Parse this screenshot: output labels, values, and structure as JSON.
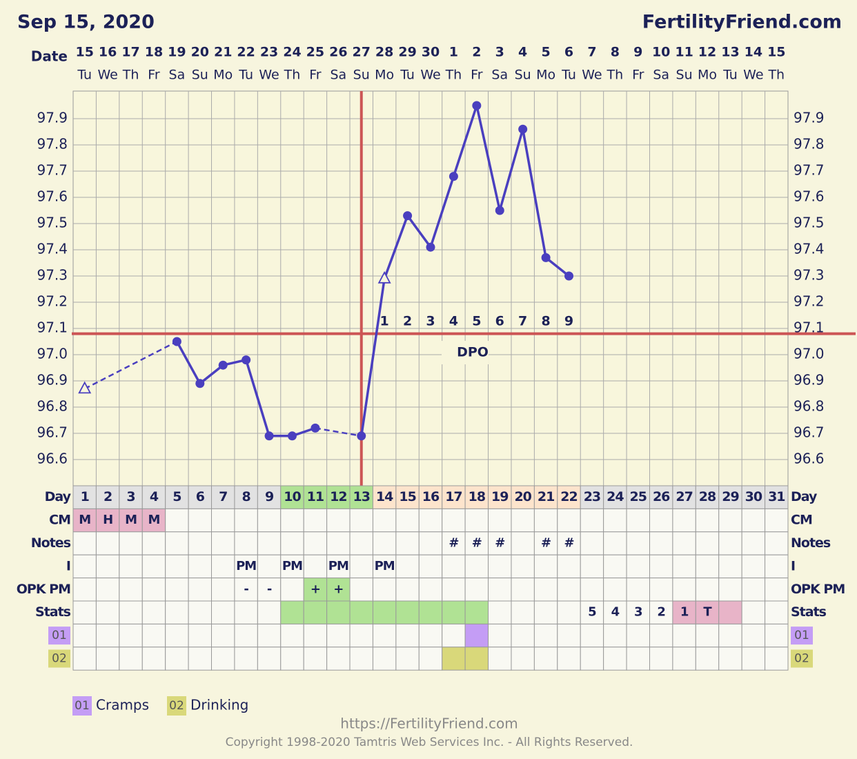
{
  "chart_data": {
    "type": "line",
    "title": "Sep 15, 2020",
    "site": "FertilityFriend.com",
    "date_label": "Date",
    "dates": [
      "15",
      "16",
      "17",
      "18",
      "19",
      "20",
      "21",
      "22",
      "23",
      "24",
      "25",
      "26",
      "27",
      "28",
      "29",
      "30",
      "1",
      "2",
      "3",
      "4",
      "5",
      "6",
      "7",
      "8",
      "9",
      "10",
      "11",
      "12",
      "13",
      "14",
      "15"
    ],
    "weekdays": [
      "Tu",
      "We",
      "Th",
      "Fr",
      "Sa",
      "Su",
      "Mo",
      "Tu",
      "We",
      "Th",
      "Fr",
      "Sa",
      "Su",
      "Mo",
      "Tu",
      "We",
      "Th",
      "Fr",
      "Sa",
      "Su",
      "Mo",
      "Tu",
      "We",
      "Th",
      "Fr",
      "Sa",
      "Su",
      "Mo",
      "Tu",
      "We",
      "Th"
    ],
    "values": [
      96.87,
      null,
      null,
      null,
      97.05,
      96.89,
      96.96,
      96.98,
      96.69,
      96.69,
      96.72,
      null,
      96.69,
      97.29,
      97.53,
      97.41,
      97.68,
      97.95,
      97.55,
      97.86,
      97.37,
      97.3,
      null,
      null,
      null,
      null,
      null,
      null,
      null,
      null,
      null
    ],
    "markers": [
      "triangle",
      null,
      null,
      null,
      "circle",
      "circle",
      "circle",
      "circle",
      "circle",
      "circle",
      "circle",
      null,
      "circle",
      "triangle",
      "circle",
      "circle",
      "circle",
      "circle",
      "circle",
      "circle",
      "circle",
      "circle",
      null,
      null,
      null,
      null,
      null,
      null,
      null,
      null,
      null
    ],
    "color": "#4a3fbf",
    "ylim": [
      96.5,
      98.0
    ],
    "yticks": [
      96.6,
      96.7,
      96.8,
      96.9,
      {
        "value": 97,
        "label": "97.0"
      },
      97.1,
      97.2,
      97.3,
      97.4,
      97.5,
      97.6,
      97.7,
      97.8,
      97.9
    ],
    "grid": true,
    "coverline": 97.08,
    "line_color": "#cc5555",
    "ovulation_day": 13,
    "dpo": [
      null,
      null,
      null,
      null,
      null,
      null,
      null,
      null,
      null,
      null,
      null,
      null,
      null,
      1,
      2,
      3,
      4,
      5,
      6,
      7,
      8,
      9,
      null,
      null,
      null,
      null,
      null,
      null,
      null,
      null,
      null
    ],
    "dpo_label": "DPO",
    "day_label": "Day",
    "days": [
      1,
      2,
      3,
      4,
      5,
      6,
      7,
      8,
      9,
      10,
      11,
      12,
      13,
      14,
      15,
      16,
      17,
      18,
      19,
      20,
      21,
      22,
      23,
      24,
      25,
      26,
      27,
      28,
      29,
      30,
      31
    ],
    "day_fills": [
      "#e2e2e2",
      "#e2e2e2",
      "#e2e2e2",
      "#e2e2e2",
      "#e2e2e2",
      "#e2e2e2",
      "#e2e2e2",
      "#e2e2e2",
      "#e2e2e2",
      "#b0e294",
      "#b0e294",
      "#b0e294",
      "#b0e294",
      "#fde4cc",
      "#fde4cc",
      "#fde4cc",
      "#fde4cc",
      "#fde4cc",
      "#fde4cc",
      "#fde4cc",
      "#fde4cc",
      "#fde4cc",
      "#e2e2e2",
      "#e2e2e2",
      "#e2e2e2",
      "#e2e2e2",
      "#e2e2e2",
      "#e2e2e2",
      "#e2e2e2",
      "#e2e2e2",
      "#e2e2e2"
    ],
    "rows": [
      {
        "label": "CM",
        "cells": [
          "M",
          "H",
          "M",
          "M",
          null,
          null,
          null,
          null,
          null,
          null,
          null,
          null,
          null,
          null,
          null,
          null,
          null,
          null,
          null,
          null,
          null,
          null,
          null,
          null,
          null,
          null,
          null,
          null,
          null,
          null,
          null
        ],
        "fills": [
          "#e8b4c8",
          "#e8b4c8",
          "#e8b4c8",
          "#e8b4c8",
          null,
          null,
          null,
          null,
          null,
          null,
          null,
          null,
          null,
          null,
          null,
          null,
          null,
          null,
          null,
          null,
          null,
          null,
          null,
          null,
          null,
          null,
          null,
          null,
          null,
          null,
          null
        ]
      },
      {
        "label": "Notes",
        "cells": [
          null,
          null,
          null,
          null,
          null,
          null,
          null,
          null,
          null,
          null,
          null,
          null,
          null,
          null,
          null,
          null,
          "#",
          "#",
          "#",
          null,
          "#",
          "#",
          null,
          null,
          null,
          null,
          null,
          null,
          null,
          null,
          null
        ]
      },
      {
        "label": "I",
        "cells": [
          null,
          null,
          null,
          null,
          null,
          null,
          null,
          "PM",
          null,
          "PM",
          null,
          "PM",
          null,
          "PM",
          null,
          null,
          null,
          null,
          null,
          null,
          null,
          null,
          null,
          null,
          null,
          null,
          null,
          null,
          null,
          null,
          null
        ]
      },
      {
        "label": "OPK PM",
        "cells": [
          null,
          null,
          null,
          null,
          null,
          null,
          null,
          "-",
          "-",
          null,
          "+",
          "+",
          null,
          null,
          null,
          null,
          null,
          null,
          null,
          null,
          null,
          null,
          null,
          null,
          null,
          null,
          null,
          null,
          null,
          null,
          null
        ],
        "fills": [
          null,
          null,
          null,
          null,
          null,
          null,
          null,
          null,
          null,
          null,
          "#b0e294",
          "#b0e294",
          null,
          null,
          null,
          null,
          null,
          null,
          null,
          null,
          null,
          null,
          null,
          null,
          null,
          null,
          null,
          null,
          null,
          null,
          null
        ]
      },
      {
        "label": "Stats",
        "cells": [
          null,
          null,
          null,
          null,
          null,
          null,
          null,
          null,
          null,
          null,
          null,
          null,
          null,
          null,
          null,
          null,
          null,
          null,
          null,
          null,
          null,
          null,
          "5",
          "4",
          "3",
          "2",
          "1",
          "T",
          null,
          null,
          null
        ],
        "fills": [
          null,
          null,
          null,
          null,
          null,
          null,
          null,
          null,
          null,
          "#b0e294",
          "#b0e294",
          "#b0e294",
          "#b0e294",
          "#b0e294",
          "#b0e294",
          "#b0e294",
          "#b0e294",
          "#b0e294",
          null,
          null,
          null,
          null,
          null,
          null,
          null,
          null,
          "#e8b4c8",
          "#e8b4c8",
          "#e8b4c8",
          null,
          null
        ]
      },
      {
        "label": "01",
        "label_color": "#c49df5",
        "fills": [
          null,
          null,
          null,
          null,
          null,
          null,
          null,
          null,
          null,
          null,
          null,
          null,
          null,
          null,
          null,
          null,
          null,
          "#c49df5",
          null,
          null,
          null,
          null,
          null,
          null,
          null,
          null,
          null,
          null,
          null,
          null,
          null
        ]
      },
      {
        "label": "02",
        "label_color": "#d9d87a",
        "fills": [
          null,
          null,
          null,
          null,
          null,
          null,
          null,
          null,
          null,
          null,
          null,
          null,
          null,
          null,
          null,
          null,
          "#d9d87a",
          "#d9d87a",
          null,
          null,
          null,
          null,
          null,
          null,
          null,
          null,
          null,
          null,
          null,
          null,
          null
        ]
      }
    ],
    "legend": [
      {
        "code": "01",
        "label": "Cramps",
        "color": "#c49df5"
      },
      {
        "code": "02",
        "label": "Drinking",
        "color": "#d9d87a"
      }
    ],
    "footer": {
      "url": "https://FertilityFriend.com",
      "copyright": "Copyright 1998-2020 Tamtris Web Services Inc. - All Rights Reserved."
    }
  }
}
